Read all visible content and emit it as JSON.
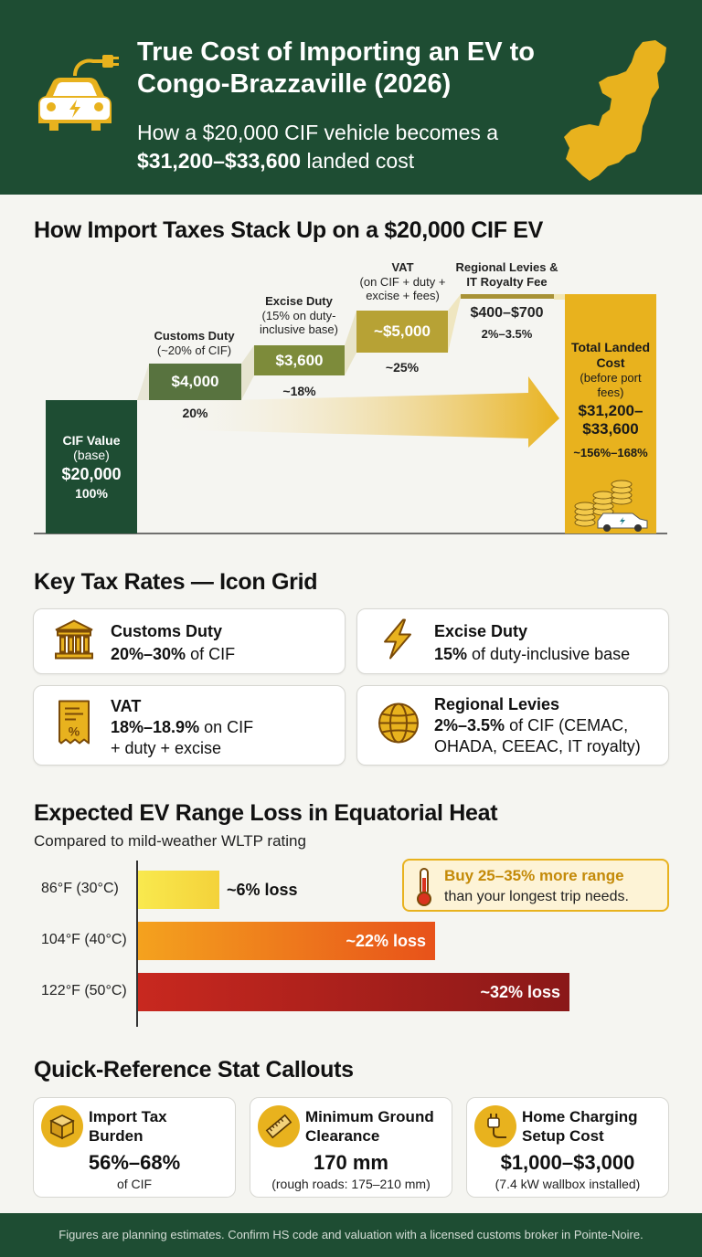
{
  "header": {
    "title": "True Cost of Importing an EV to Congo-Brazzaville (2026)",
    "subtitle_pre": "How a $20,000 CIF vehicle becomes a ",
    "subtitle_bold": "$31,200–$33,600",
    "subtitle_post": " landed cost",
    "icons": [
      "ev-car-plug-icon",
      "congo-map-icon"
    ]
  },
  "waterfall": {
    "heading": "How Import Taxes Stack Up on a $20,000 CIF EV",
    "cif": {
      "label": "CIF Value",
      "sub": "(base)",
      "value": "$20,000",
      "pct": "100%"
    },
    "customs": {
      "label": "Customs Duty",
      "sub": "(~20% of CIF)",
      "value": "$4,000",
      "pct": "20%"
    },
    "excise": {
      "label": "Excise Duty",
      "sub": "(15% on duty-inclusive base)",
      "value": "$3,600",
      "pct": "~18%"
    },
    "vat": {
      "label": "VAT",
      "sub": "(on CIF + duty + excise + fees)",
      "value": "~$5,000",
      "pct": "~25%"
    },
    "levies": {
      "label": "Regional Levies & IT Royalty Fee",
      "value": "$400–$700",
      "pct": "2%–3.5%"
    },
    "total": {
      "label": "Total Landed Cost",
      "sub": "(before port fees)",
      "value": "$31,200–$33,600",
      "pct": "~156%–168%"
    },
    "colors": {
      "dark_green": "#1e4d33",
      "green": "#58733f",
      "olive": "#7d8b3a",
      "gold": "#b7a235",
      "yellow": "#e8b21e"
    }
  },
  "grid": {
    "heading": "Key Tax Rates — Icon Grid",
    "cards": [
      {
        "icon": "bank-building-icon",
        "title": "Customs Duty",
        "bold": "20%–30%",
        "rest": " of CIF",
        "line2": ""
      },
      {
        "icon": "lightning-icon",
        "title": "Excise Duty",
        "bold": "15%",
        "rest": " of duty-inclusive base",
        "line2": ""
      },
      {
        "icon": "receipt-percent-icon",
        "title": "VAT",
        "bold": "18%–18.9%",
        "rest": " on CIF",
        "line2": "+ duty + excise"
      },
      {
        "icon": "globe-icon",
        "title": "Regional Levies",
        "bold": "2%–3.5%",
        "rest": " of CIF (CEMAC,",
        "line2": "OHADA, CEEAC, IT royalty)"
      }
    ]
  },
  "range": {
    "heading": "Expected EV Range Loss in Equatorial Heat",
    "subheading": "Compared to mild-weather WLTP rating",
    "tip_bold": "Buy 25–35% more range",
    "tip_rest": "than your longest trip needs.",
    "tip_icon": "thermometer-icon"
  },
  "chart_data": {
    "type": "bar",
    "orientation": "horizontal",
    "categories": [
      "86°F (30°C)",
      "104°F (40°C)",
      "122°F (50°C)"
    ],
    "values": [
      6,
      22,
      32
    ],
    "value_labels": [
      "~6% loss",
      "~22% loss",
      "~32% loss"
    ],
    "unit": "%",
    "colors": [
      "#f7e14a",
      "#f08a1e",
      "#b8201f"
    ]
  },
  "stats": {
    "heading": "Quick-Reference Stat Callouts",
    "items": [
      {
        "icon": "box-icon",
        "title": "Import Tax Burden",
        "value": "56%–68%",
        "note": "of CIF"
      },
      {
        "icon": "ruler-icon",
        "title": "Minimum Ground Clearance",
        "value": "170 mm",
        "note": "(rough roads: 175–210 mm)"
      },
      {
        "icon": "plug-icon",
        "title": "Home Charging Setup Cost",
        "value": "$1,000–$3,000",
        "note": "(7.4 kW wallbox installed)"
      }
    ]
  },
  "footer": "Figures are planning estimates. Confirm HS code and valuation with a licensed customs broker in Pointe-Noire."
}
